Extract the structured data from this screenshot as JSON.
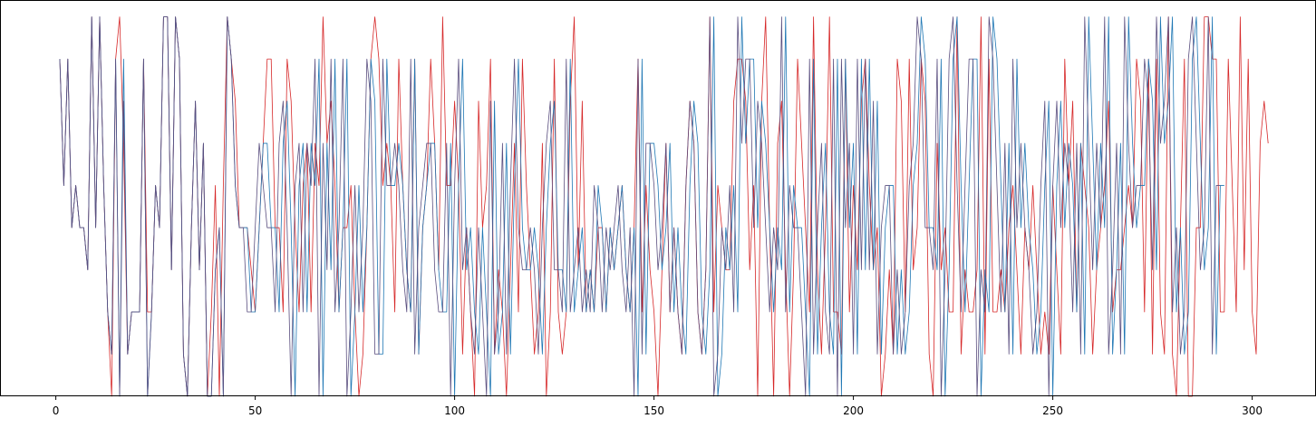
{
  "chart_data": {
    "type": "line",
    "title": "",
    "xlabel": "",
    "ylabel": "",
    "xlim": [
      -14,
      316
    ],
    "ylim": [
      0,
      9.4
    ],
    "x_ticks": [
      0,
      50,
      100,
      150,
      200,
      250,
      300
    ],
    "x_tick_labels": [
      "0",
      "50",
      "100",
      "150",
      "200",
      "250",
      "300"
    ],
    "y_ticks_visible": false,
    "grid": false,
    "legend": "none",
    "x_start": 1,
    "series": [
      {
        "color": "#d62728",
        "values": [
          8,
          5,
          8,
          4,
          5,
          4,
          4,
          3,
          9,
          4,
          9,
          5,
          2,
          0,
          8,
          9,
          6,
          1,
          2,
          2,
          2,
          8,
          2,
          2,
          5,
          4,
          9,
          9,
          3,
          9,
          8,
          1,
          0,
          4,
          7,
          3,
          6,
          0,
          2,
          5,
          0,
          5,
          9,
          8,
          7,
          4,
          4,
          4,
          3,
          2,
          4,
          6,
          8,
          8,
          4,
          4,
          2,
          8,
          7,
          4,
          2,
          5,
          6,
          2,
          6,
          5,
          9,
          6,
          7,
          5,
          2,
          4,
          4,
          5,
          2,
          0,
          1,
          4,
          8,
          9,
          8,
          5,
          6,
          5,
          2,
          8,
          5,
          3,
          2,
          8,
          1,
          4,
          5,
          8,
          6,
          3,
          9,
          5,
          5,
          7,
          5,
          1,
          4,
          2,
          0,
          7,
          4,
          5,
          8,
          1,
          3,
          2,
          0,
          3,
          6,
          2,
          8,
          5,
          3,
          1,
          2,
          6,
          0,
          2,
          8,
          2,
          1,
          2,
          7,
          9,
          3,
          7,
          2,
          3,
          2,
          4,
          4,
          2,
          4,
          3,
          4,
          5,
          3,
          2,
          4,
          8,
          2,
          5,
          3,
          2,
          0,
          3,
          6,
          2,
          4,
          2,
          1,
          5,
          7,
          6,
          2,
          1,
          3,
          9,
          2,
          5,
          4,
          3,
          3,
          7,
          8,
          8,
          7,
          3,
          5,
          0,
          7,
          9,
          4,
          0,
          6,
          7,
          3,
          0,
          3,
          8,
          6,
          4,
          2,
          9,
          3,
          1,
          4,
          9,
          2,
          2,
          1,
          8,
          2,
          5,
          3,
          7,
          8,
          5,
          3,
          4,
          0,
          1,
          3,
          1,
          8,
          7,
          2,
          8,
          3,
          4,
          8,
          7,
          1,
          0,
          6,
          3,
          4,
          2,
          2,
          9,
          1,
          3,
          2,
          2,
          3,
          9,
          1,
          8,
          2,
          2,
          3,
          2,
          4,
          5,
          3,
          1,
          4,
          3,
          5,
          3,
          1,
          2,
          1,
          5,
          3,
          1,
          8,
          5,
          7,
          2,
          6,
          5,
          4,
          1,
          3,
          4,
          5,
          7,
          2,
          3,
          3,
          4,
          5,
          4,
          8,
          7,
          2,
          8,
          1,
          8,
          2,
          1,
          9,
          1,
          0,
          4,
          8,
          0,
          0,
          4,
          4,
          9,
          9,
          8,
          8,
          2,
          2,
          8,
          5,
          2,
          9,
          3,
          8,
          2,
          1,
          6,
          7,
          6
        ]
      },
      {
        "color": "#1f77b4",
        "values": [
          8,
          5,
          8,
          4,
          5,
          4,
          4,
          3,
          9,
          4,
          9,
          5,
          2,
          1,
          8,
          0,
          8,
          1,
          2,
          2,
          2,
          8,
          0,
          2,
          5,
          4,
          9,
          9,
          3,
          9,
          8,
          1,
          0,
          4,
          7,
          3,
          6,
          0,
          0,
          3,
          4,
          0,
          9,
          8,
          5,
          4,
          4,
          4,
          2,
          2,
          4,
          6,
          6,
          4,
          4,
          2,
          6,
          7,
          4,
          0,
          5,
          6,
          2,
          6,
          5,
          8,
          0,
          6,
          3,
          8,
          2,
          4,
          8,
          0,
          2,
          5,
          2,
          4,
          8,
          7,
          1,
          1,
          8,
          5,
          5,
          6,
          5,
          3,
          2,
          8,
          1,
          4,
          5,
          6,
          6,
          3,
          2,
          2,
          6,
          0,
          5,
          8,
          3,
          4,
          2,
          1,
          4,
          2,
          0,
          7,
          1,
          2,
          6,
          1,
          5,
          8,
          4,
          3,
          3,
          4,
          3,
          1,
          4,
          6,
          7,
          3,
          3,
          2,
          8,
          2,
          3,
          4,
          2,
          3,
          2,
          5,
          4,
          2,
          4,
          3,
          4,
          5,
          3,
          2,
          4,
          0,
          8,
          1,
          6,
          6,
          5,
          3,
          4,
          6,
          2,
          4,
          2,
          1,
          5,
          7,
          6,
          2,
          1,
          3,
          9,
          0,
          1,
          4,
          3,
          5,
          2,
          9,
          6,
          8,
          8,
          4,
          7,
          6,
          4,
          2,
          4,
          3,
          9,
          2,
          5,
          4,
          4,
          2,
          0,
          8,
          1,
          4,
          6,
          2,
          1,
          8,
          0,
          8,
          4,
          6,
          1,
          8,
          3,
          8,
          3,
          7,
          1,
          4,
          5,
          5,
          1,
          3,
          1,
          2,
          5,
          6,
          9,
          8,
          4,
          4,
          3,
          8,
          0,
          3,
          8,
          9,
          5,
          2,
          5,
          8,
          8,
          0,
          3,
          2,
          9,
          8,
          5,
          2,
          6,
          1,
          8,
          4,
          6,
          4,
          3,
          1,
          2,
          5,
          7,
          0,
          5,
          7,
          4,
          6,
          5,
          2,
          6,
          1,
          9,
          6,
          3,
          6,
          4,
          9,
          1,
          3,
          6,
          1,
          9,
          6,
          4,
          5,
          5,
          8,
          7,
          3,
          9,
          6,
          7,
          9,
          2,
          4,
          1,
          2,
          8,
          9,
          6,
          3,
          4,
          9,
          1,
          5,
          5
        ]
      },
      {
        "color": "#5a4e7f",
        "values": [
          8,
          5,
          8,
          4,
          5,
          4,
          4,
          3,
          9,
          4,
          9,
          5,
          2,
          1,
          8,
          0,
          7,
          1,
          2,
          2,
          2,
          8,
          0,
          2,
          5,
          4,
          9,
          9,
          3,
          9,
          8,
          1,
          0,
          4,
          7,
          3,
          6,
          0,
          0,
          3,
          4,
          0,
          9,
          8,
          5,
          4,
          4,
          2,
          2,
          4,
          6,
          5,
          4,
          4,
          2,
          6,
          7,
          4,
          0,
          5,
          6,
          2,
          6,
          5,
          8,
          0,
          6,
          3,
          8,
          2,
          4,
          8,
          0,
          2,
          5,
          2,
          4,
          8,
          7,
          1,
          1,
          8,
          5,
          5,
          6,
          5,
          3,
          2,
          8,
          1,
          4,
          5,
          6,
          6,
          3,
          2,
          2,
          6,
          0,
          5,
          8,
          3,
          4,
          2,
          1,
          4,
          2,
          0,
          7,
          1,
          2,
          6,
          1,
          5,
          8,
          4,
          3,
          3,
          4,
          3,
          1,
          4,
          6,
          7,
          3,
          3,
          2,
          8,
          2,
          3,
          4,
          2,
          3,
          2,
          5,
          4,
          2,
          4,
          3,
          4,
          5,
          3,
          2,
          4,
          0,
          8,
          1,
          6,
          6,
          5,
          3,
          4,
          6,
          2,
          4,
          2,
          1,
          5,
          7,
          6,
          2,
          1,
          3,
          9,
          0,
          1,
          4,
          3,
          5,
          2,
          9,
          6,
          8,
          8,
          4,
          7,
          6,
          4,
          2,
          4,
          3,
          9,
          2,
          5,
          4,
          4,
          2,
          0,
          8,
          1,
          4,
          6,
          2,
          1,
          8,
          0,
          8,
          4,
          6,
          1,
          8,
          3,
          8,
          3,
          7,
          1,
          4,
          5,
          5,
          1,
          3,
          1,
          2,
          5,
          6,
          9,
          8,
          4,
          4,
          3,
          8,
          0,
          3,
          8,
          9,
          5,
          2,
          5,
          8,
          8,
          0,
          3,
          2,
          9,
          8,
          5,
          2,
          6,
          1,
          8,
          4,
          6,
          4,
          3,
          1,
          2,
          5,
          7,
          0,
          5,
          7,
          4,
          6,
          5,
          2,
          6,
          1,
          9,
          6,
          3,
          6,
          4,
          9,
          1,
          3,
          6,
          1,
          9,
          6,
          4,
          5,
          5,
          8,
          7,
          3,
          9,
          6,
          7,
          9,
          2,
          4,
          1,
          2,
          8,
          9,
          6,
          3,
          4,
          9,
          1,
          5,
          5
        ]
      }
    ]
  }
}
